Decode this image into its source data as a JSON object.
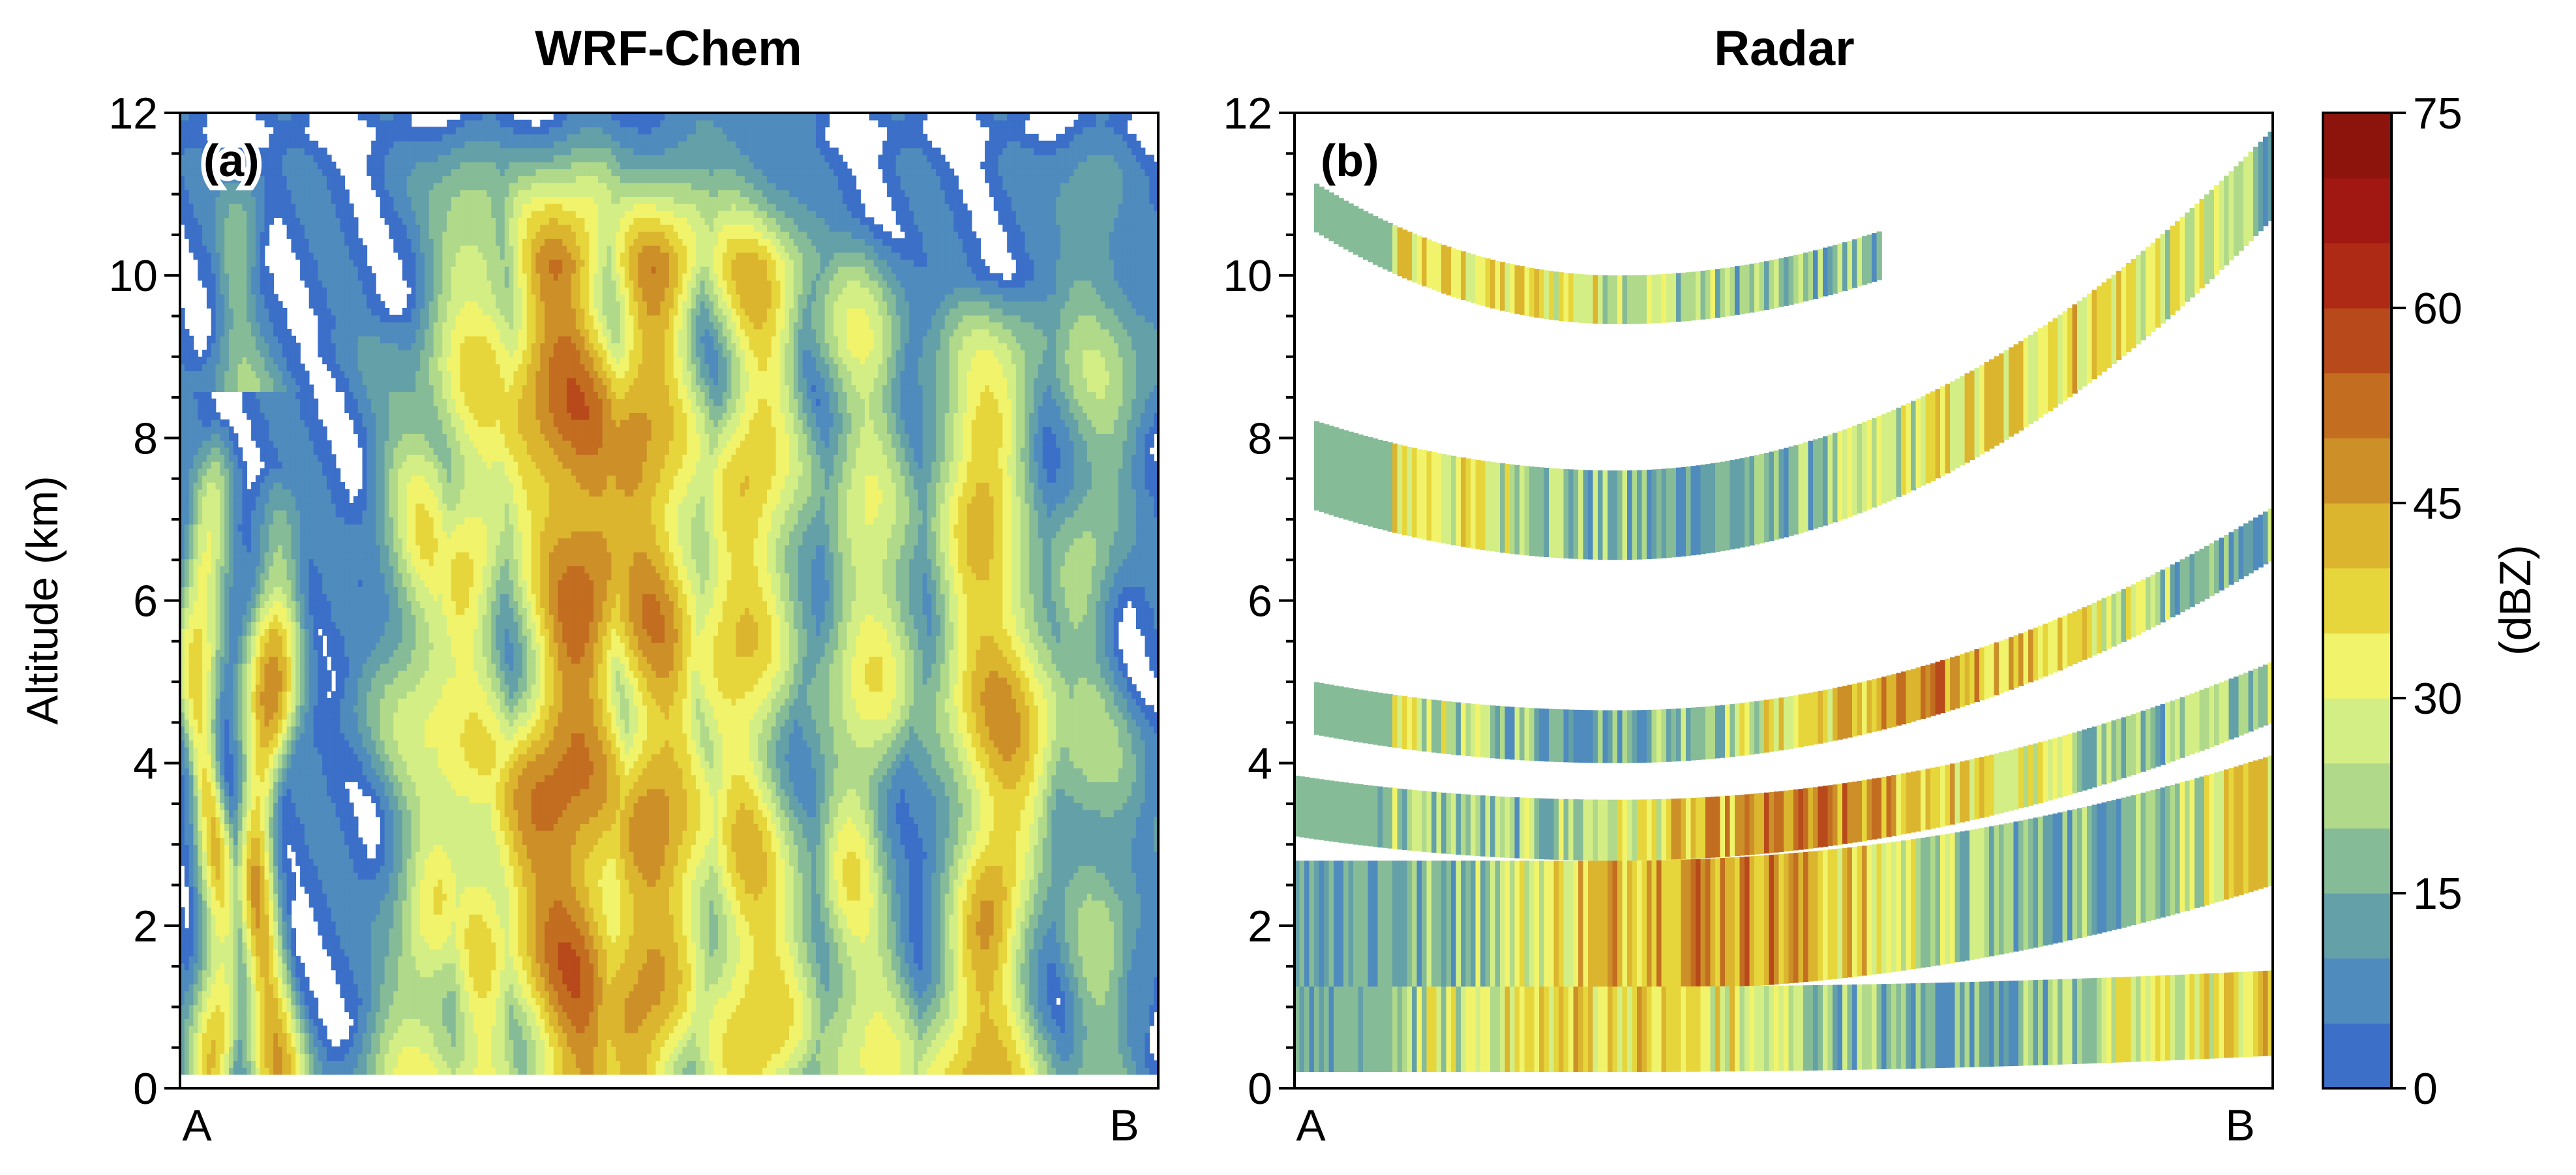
{
  "chart_data": [
    {
      "type": "heatmap",
      "title": "WRF-Chem",
      "panel_label": "(a)",
      "ylabel": "Altitude (km)",
      "xlabel": "",
      "x_tick_labels": [
        "A",
        "B"
      ],
      "ylim": [
        0,
        12
      ],
      "y_ticks": [
        0,
        2,
        4,
        6,
        8,
        10,
        12
      ],
      "y_minor_step": 0.5,
      "grid": false,
      "value_units": "dBZ",
      "cores": [
        {
          "x": 0.03,
          "ybot": 0.2,
          "ytop": 8.3,
          "peak": 36
        },
        {
          "x": 0.09,
          "ybot": 0.2,
          "ytop": 7.5,
          "peak": 42
        },
        {
          "x": 0.26,
          "ybot": 0.2,
          "ytop": 9.5,
          "peak": 30
        },
        {
          "x": 0.3,
          "ybot": 0.2,
          "ytop": 12,
          "peak": 33
        },
        {
          "x": 0.4,
          "ybot": 0.2,
          "ytop": 12,
          "peak": 50
        },
        {
          "x": 0.48,
          "ybot": 0.2,
          "ytop": 12,
          "peak": 45
        },
        {
          "x": 0.58,
          "ybot": 0.2,
          "ytop": 12,
          "peak": 38
        },
        {
          "x": 0.7,
          "ybot": 0.2,
          "ytop": 11,
          "peak": 30
        },
        {
          "x": 0.83,
          "ybot": 0.2,
          "ytop": 10,
          "peak": 42
        },
        {
          "x": 0.93,
          "ybot": 0.2,
          "ytop": 12,
          "peak": 20
        },
        {
          "x": 0.07,
          "ybot": 8.6,
          "ytop": 12,
          "peak": 18
        },
        {
          "x": 0.995,
          "ybot": 0.2,
          "ytop": 5,
          "peak": 8
        }
      ]
    },
    {
      "type": "heatmap",
      "title": "Radar",
      "panel_label": "(b)",
      "ylabel": "",
      "xlabel": "",
      "x_tick_labels": [
        "A",
        "B"
      ],
      "ylim": [
        0,
        12
      ],
      "y_ticks": [
        0,
        2,
        4,
        6,
        8,
        10,
        12
      ],
      "y_minor_step": 0.5,
      "grid": false,
      "value_units": "dBZ",
      "beams": [
        {
          "bottom_min": 9.4,
          "bottom_left": 10.7,
          "bottom_right": 12.8,
          "thickness": 0.6,
          "x_start": 0.02,
          "x_end": 0.6,
          "min_val": 5,
          "mean": 27,
          "peak": 42
        },
        {
          "bottom_min": 6.5,
          "bottom_left": 7.2,
          "bottom_right": 10.7,
          "thickness": 1.1,
          "x_start": 0.02,
          "x_end": 1.0,
          "min_val": 5,
          "mean": 25,
          "peak": 45
        },
        {
          "bottom_min": 4.0,
          "bottom_left": 4.4,
          "bottom_right": 6.5,
          "thickness": 0.65,
          "x_start": 0.02,
          "x_end": 1.0,
          "min_val": 5,
          "mean": 30,
          "peak": 55
        },
        {
          "bottom_min": 2.8,
          "bottom_left": 3.1,
          "bottom_right": 4.5,
          "thickness": 0.75,
          "x_start": 0.0,
          "x_end": 1.0,
          "min_val": 5,
          "mean": 33,
          "peak": 57
        },
        {
          "bottom_min": 1.2,
          "bottom_left": 1.2,
          "bottom_right": 2.5,
          "thickness": 1.6,
          "x_start": 0.0,
          "x_end": 1.0,
          "min_val": 5,
          "mean": 32,
          "peak": 60
        },
        {
          "bottom_min": 0.2,
          "bottom_left": 0.2,
          "bottom_right": 0.4,
          "thickness": 1.05,
          "x_start": 0.0,
          "x_end": 1.0,
          "min_val": 5,
          "mean": 26,
          "peak": 45
        }
      ]
    }
  ],
  "colorbar": {
    "label": "(dBZ)",
    "min": 0,
    "max": 75,
    "step": 5,
    "tick_values": [
      0,
      15,
      30,
      45,
      60,
      75
    ],
    "tick_labels": [
      "0",
      "15",
      "30",
      "45",
      "60",
      "75"
    ],
    "colors": [
      "#3b6fc8",
      "#4f8bbd",
      "#64a0a8",
      "#86bb98",
      "#b0d98a",
      "#d4ee86",
      "#f1f46a",
      "#e6d63c",
      "#dcb52f",
      "#cd9028",
      "#c36d21",
      "#b7491a",
      "#ae2a15",
      "#a01811",
      "#8c140d"
    ]
  }
}
